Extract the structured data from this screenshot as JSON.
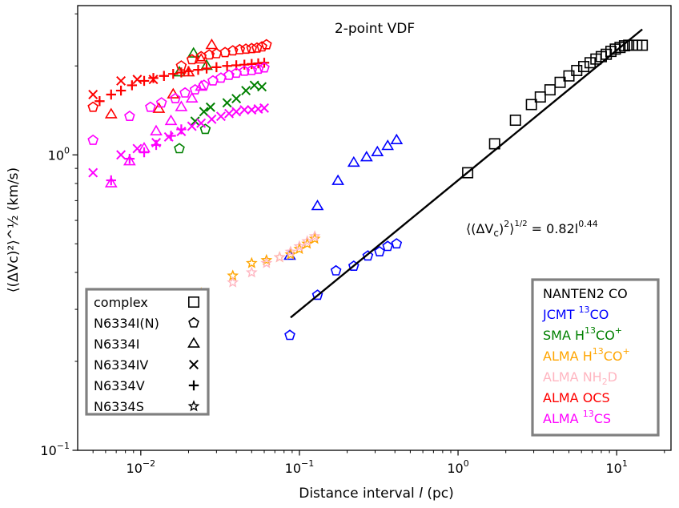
{
  "chart_data": {
    "type": "scatter",
    "title": "2-point VDF",
    "xlabel": "Distance interval l (pc)",
    "ylabel": "⟨(ΔVc)²⟩^½ (km/s)",
    "xscale": "log",
    "yscale": "log",
    "xlim": [
      0.004,
      22
    ],
    "ylim": [
      0.1,
      3.2
    ],
    "x_ticks": [
      {
        "value": 0.01,
        "base": "10",
        "exp": "−2"
      },
      {
        "value": 0.1,
        "base": "10",
        "exp": "−1"
      },
      {
        "value": 1,
        "base": "10",
        "exp": "0"
      },
      {
        "value": 10,
        "base": "10",
        "exp": "1"
      }
    ],
    "y_ticks": [
      {
        "value": 0.1,
        "base": "10",
        "exp": "−1"
      },
      {
        "value": 1,
        "base": "10",
        "exp": "0"
      }
    ],
    "grid": false,
    "fit": {
      "coefficient": 0.82,
      "exponent": 0.44,
      "x_range": [
        0.088,
        14.5
      ],
      "label_prefix": "⟨(ΔV",
      "label_sub": "c",
      "label_mid": ")",
      "label_sup2": "2",
      "label_close": "⟩",
      "label_half": "1/2",
      "label_eq": " = 0.82l",
      "label_exp": "0.44"
    },
    "marker_legend": {
      "placement": "lower-left",
      "entries": [
        {
          "label": "complex",
          "marker": "square"
        },
        {
          "label": "N6334I(N)",
          "marker": "pentagon"
        },
        {
          "label": "N6334I",
          "marker": "triangle"
        },
        {
          "label": "N6334IV",
          "marker": "x"
        },
        {
          "label": "N6334V",
          "marker": "plus"
        },
        {
          "label": "N6334S",
          "marker": "star"
        }
      ]
    },
    "color_legend": {
      "placement": "lower-right",
      "entries": [
        {
          "parts": [
            {
              "t": "NANTEN2 CO"
            }
          ],
          "color": "#000000"
        },
        {
          "parts": [
            {
              "t": "JCMT "
            },
            {
              "t": "13",
              "sup": true
            },
            {
              "t": "CO"
            }
          ],
          "color": "#0000ff"
        },
        {
          "parts": [
            {
              "t": "SMA H"
            },
            {
              "t": "13",
              "sup": true
            },
            {
              "t": "CO"
            },
            {
              "t": "+",
              "sup": true
            }
          ],
          "color": "#008000"
        },
        {
          "parts": [
            {
              "t": "ALMA H"
            },
            {
              "t": "13",
              "sup": true
            },
            {
              "t": "CO"
            },
            {
              "t": "+",
              "sup": true
            }
          ],
          "color": "#ffa500"
        },
        {
          "parts": [
            {
              "t": "ALMA NH"
            },
            {
              "t": "2",
              "sub": true
            },
            {
              "t": "D"
            }
          ],
          "color": "#ffb6c1"
        },
        {
          "parts": [
            {
              "t": "ALMA OCS"
            }
          ],
          "color": "#ff0000"
        },
        {
          "parts": [
            {
              "t": "ALMA "
            },
            {
              "t": "13",
              "sup": true
            },
            {
              "t": "CS"
            }
          ],
          "color": "#ff00ff"
        }
      ]
    },
    "series": [
      {
        "instrument": "NANTEN2 CO",
        "region": "complex",
        "marker": "square",
        "color": "#000000",
        "x": [
          1.15,
          1.7,
          2.3,
          2.9,
          3.3,
          3.8,
          4.4,
          5.0,
          5.6,
          6.2,
          6.8,
          7.4,
          8.0,
          8.6,
          9.2,
          9.8,
          10.5,
          11.2,
          11.9,
          12.6,
          13.4,
          14.5
        ],
        "y": [
          0.87,
          1.09,
          1.31,
          1.48,
          1.57,
          1.66,
          1.76,
          1.85,
          1.93,
          1.99,
          2.05,
          2.11,
          2.15,
          2.19,
          2.24,
          2.28,
          2.31,
          2.34,
          2.35,
          2.35,
          2.35,
          2.35
        ]
      },
      {
        "instrument": "JCMT 13CO",
        "region": "N6334I(N)",
        "marker": "pentagon",
        "color": "#0000ff",
        "x": [
          0.087,
          0.13,
          0.17,
          0.22,
          0.27,
          0.32,
          0.36,
          0.41
        ],
        "y": [
          0.245,
          0.335,
          0.405,
          0.42,
          0.455,
          0.47,
          0.49,
          0.5
        ]
      },
      {
        "instrument": "JCMT 13CO",
        "region": "N6334I",
        "marker": "triangle",
        "color": "#0000ff",
        "x": [
          0.087,
          0.13,
          0.175,
          0.22,
          0.265,
          0.31,
          0.36,
          0.41
        ],
        "y": [
          0.455,
          0.67,
          0.815,
          0.94,
          0.98,
          1.02,
          1.07,
          1.12
        ]
      },
      {
        "instrument": "SMA H13CO+",
        "region": "N6334I(N)",
        "marker": "pentagon",
        "color": "#008000",
        "x": [
          0.0175,
          0.0255
        ],
        "y": [
          1.05,
          1.22
        ]
      },
      {
        "instrument": "SMA H13CO+",
        "region": "N6334I",
        "marker": "triangle",
        "color": "#008000",
        "x": [
          0.0175,
          0.0215,
          0.026
        ],
        "y": [
          1.9,
          2.2,
          2.0
        ]
      },
      {
        "instrument": "SMA H13CO+",
        "region": "N6334IV",
        "marker": "x",
        "color": "#008000",
        "x": [
          0.022,
          0.025,
          0.0275,
          0.035,
          0.04,
          0.046,
          0.052,
          0.058
        ],
        "y": [
          1.3,
          1.4,
          1.45,
          1.5,
          1.55,
          1.65,
          1.72,
          1.7
        ]
      },
      {
        "instrument": "ALMA H13CO+",
        "region": "N6334S",
        "marker": "star",
        "color": "#ffa500",
        "x": [
          0.024,
          0.038,
          0.05,
          0.062,
          0.075,
          0.088,
          0.1,
          0.112,
          0.125
        ],
        "y": [
          0.34,
          0.39,
          0.43,
          0.44,
          0.45,
          0.46,
          0.48,
          0.5,
          0.52
        ]
      },
      {
        "instrument": "ALMA NH2D",
        "region": "N6334S",
        "marker": "star",
        "color": "#ffb6c1",
        "x": [
          0.038,
          0.05,
          0.062,
          0.075,
          0.088,
          0.1,
          0.112,
          0.125
        ],
        "y": [
          0.37,
          0.4,
          0.43,
          0.45,
          0.47,
          0.49,
          0.51,
          0.53
        ]
      },
      {
        "instrument": "ALMA OCS",
        "region": "N6334I(N)",
        "marker": "pentagon",
        "color": "#ff0000",
        "x": [
          0.005,
          0.018,
          0.021,
          0.024,
          0.027,
          0.03,
          0.034,
          0.038,
          0.042,
          0.046,
          0.05,
          0.054,
          0.058,
          0.062
        ],
        "y": [
          1.45,
          2.0,
          2.1,
          2.15,
          2.18,
          2.2,
          2.22,
          2.25,
          2.27,
          2.28,
          2.29,
          2.3,
          2.32,
          2.36
        ]
      },
      {
        "instrument": "ALMA OCS",
        "region": "N6334I",
        "marker": "triangle",
        "color": "#ff0000",
        "x": [
          0.0065,
          0.013,
          0.016,
          0.02,
          0.024,
          0.028
        ],
        "y": [
          1.37,
          1.43,
          1.6,
          1.9,
          2.1,
          2.35
        ]
      },
      {
        "instrument": "ALMA OCS",
        "region": "N6334IV",
        "marker": "x",
        "color": "#ff0000",
        "x": [
          0.005,
          0.0075,
          0.0095,
          0.012
        ],
        "y": [
          1.6,
          1.78,
          1.8,
          1.8
        ]
      },
      {
        "instrument": "ALMA OCS",
        "region": "N6334V",
        "marker": "plus",
        "color": "#ff0000",
        "x": [
          0.0055,
          0.0065,
          0.0075,
          0.0088,
          0.0105,
          0.012,
          0.014,
          0.016,
          0.018,
          0.02,
          0.023,
          0.026,
          0.03,
          0.035,
          0.04,
          0.045,
          0.05,
          0.055,
          0.06
        ],
        "y": [
          1.52,
          1.6,
          1.65,
          1.72,
          1.78,
          1.82,
          1.85,
          1.88,
          1.9,
          1.92,
          1.94,
          1.96,
          1.98,
          2.0,
          2.01,
          2.02,
          2.03,
          2.04,
          2.05
        ]
      },
      {
        "instrument": "ALMA 13CS",
        "region": "N6334I(N)",
        "marker": "pentagon",
        "color": "#ff00ff",
        "x": [
          0.005,
          0.0085,
          0.0115,
          0.0135,
          0.0165,
          0.019,
          0.022,
          0.025,
          0.0285,
          0.032,
          0.036,
          0.04,
          0.045,
          0.05,
          0.055,
          0.06
        ],
        "y": [
          1.12,
          1.35,
          1.45,
          1.5,
          1.55,
          1.62,
          1.66,
          1.72,
          1.78,
          1.82,
          1.86,
          1.89,
          1.92,
          1.93,
          1.95,
          1.97
        ]
      },
      {
        "instrument": "ALMA 13CS",
        "region": "N6334I",
        "marker": "triangle",
        "color": "#ff00ff",
        "x": [
          0.0065,
          0.0085,
          0.0105,
          0.0125,
          0.0155,
          0.018,
          0.021,
          0.024
        ],
        "y": [
          0.8,
          0.95,
          1.05,
          1.2,
          1.3,
          1.45,
          1.55,
          1.7
        ]
      },
      {
        "instrument": "ALMA 13CS",
        "region": "N6334IV",
        "marker": "x",
        "color": "#ff00ff",
        "x": [
          0.005,
          0.0075,
          0.0095,
          0.0125,
          0.015,
          0.018,
          0.021,
          0.024,
          0.028,
          0.032,
          0.036,
          0.04,
          0.045,
          0.05,
          0.055,
          0.06
        ],
        "y": [
          0.87,
          1.0,
          1.05,
          1.1,
          1.15,
          1.2,
          1.25,
          1.28,
          1.32,
          1.35,
          1.38,
          1.4,
          1.42,
          1.42,
          1.43,
          1.44
        ]
      },
      {
        "instrument": "ALMA 13CS",
        "region": "N6334V",
        "marker": "plus",
        "color": "#ff00ff",
        "x": [
          0.0065,
          0.0085,
          0.0105,
          0.0125,
          0.0155,
          0.018
        ],
        "y": [
          0.82,
          0.97,
          1.02,
          1.08,
          1.16,
          1.22
        ]
      }
    ]
  }
}
